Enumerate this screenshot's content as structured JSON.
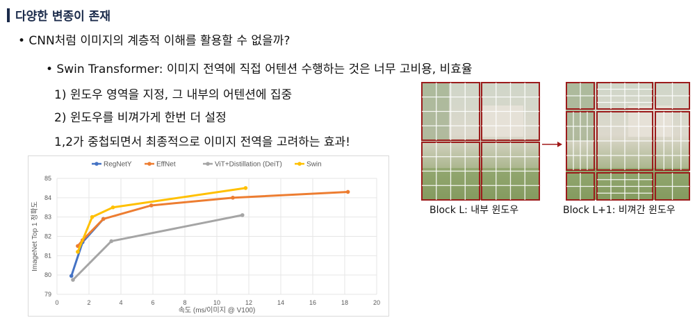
{
  "slide": {
    "title": "다양한 변종이 존재",
    "bullet1": "• CNN처럼 이미지의 계층적 이해를 활용할 수 없을까?",
    "bullet2_bold": "• Swin Transformer",
    "bullet2_rest": ": 이미지 전역에 직접 어텐션 수행하는 것은 너무 고비용, 비효율",
    "item1": "1) 윈도우 영역을 지정, 그 내부의 어텐션에 집중",
    "item2": "2) 윈도우를 비껴가게 한번 더 설정",
    "item3": "1,2가 중첩되면서 최종적으로 이미지 전역을 고려하는 효과!"
  },
  "figure": {
    "caption_left": "Block L: 내부 윈도우",
    "caption_right": "Block L+1: 비껴간 윈도우",
    "arrow_color": "#a01818",
    "grid_color": "#9b1b1b"
  },
  "chart_data": {
    "type": "line",
    "xlabel": "속도 (ms/이미지 @ V100)",
    "ylabel": "ImageNet Top 1 정확도",
    "xlim": [
      0,
      20
    ],
    "ylim": [
      79,
      85
    ],
    "xticks": [
      0,
      2,
      4,
      6,
      8,
      10,
      12,
      14,
      16,
      18,
      20
    ],
    "yticks": [
      79,
      80,
      81,
      82,
      83,
      84,
      85
    ],
    "legend_position": "top",
    "grid": true,
    "series": [
      {
        "name": "RegNetY",
        "color": "#4472c4",
        "points": [
          [
            0.9,
            79.95
          ],
          [
            1.6,
            81.7
          ],
          [
            2.9,
            82.9
          ]
        ]
      },
      {
        "name": "EffNet",
        "color": "#ed7d31",
        "points": [
          [
            1.3,
            81.5
          ],
          [
            1.6,
            81.8
          ],
          [
            2.9,
            82.9
          ],
          [
            5.9,
            83.6
          ],
          [
            11,
            84.0
          ],
          [
            18.2,
            84.3
          ]
        ]
      },
      {
        "name": "ViT+Distillation (DeiT)",
        "color": "#a5a5a5",
        "points": [
          [
            1.0,
            79.75
          ],
          [
            3.4,
            81.75
          ],
          [
            11.6,
            83.1
          ]
        ]
      },
      {
        "name": "Swin",
        "color": "#ffc000",
        "points": [
          [
            1.3,
            81.2
          ],
          [
            2.2,
            83.0
          ],
          [
            3.5,
            83.5
          ],
          [
            11.8,
            84.5
          ]
        ]
      }
    ]
  }
}
